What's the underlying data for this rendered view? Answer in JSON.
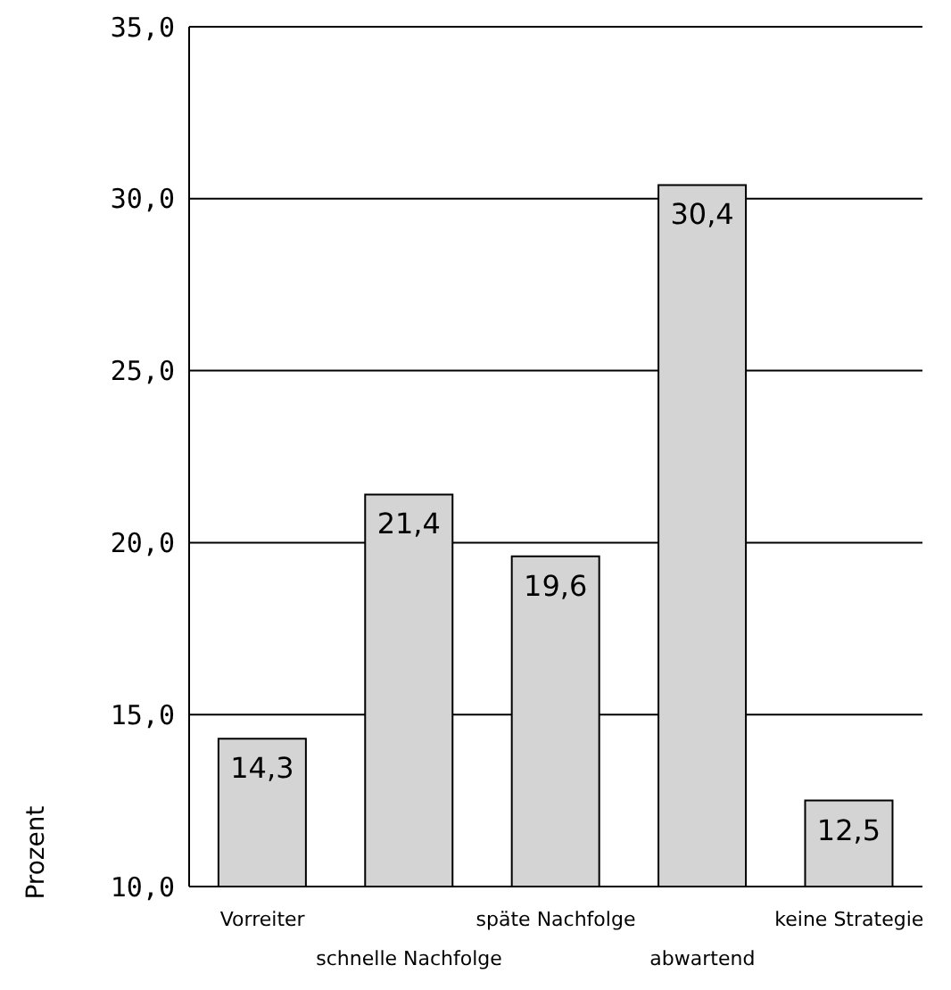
{
  "chart_data": {
    "type": "bar",
    "ylabel": "Prozent",
    "categories": [
      "Vorreiter",
      "schnelle Nachfolge",
      "späte Nachfolge",
      "abwartend",
      "keine Strategie"
    ],
    "values": [
      14.3,
      21.4,
      19.6,
      30.4,
      12.5
    ],
    "value_labels": [
      "14,3",
      "21,4",
      "19,6",
      "30,4",
      "12,5"
    ],
    "color": "#d4d4d4",
    "ylim": [
      10,
      35
    ],
    "yticks": [
      {
        "value": 10,
        "label": "10,0"
      },
      {
        "value": 15,
        "label": "15,0"
      },
      {
        "value": 20,
        "label": "20,0"
      },
      {
        "value": 25,
        "label": "25,0"
      },
      {
        "value": 30,
        "label": "30,0"
      },
      {
        "value": 35,
        "label": "35,0"
      }
    ],
    "grid": "y"
  }
}
